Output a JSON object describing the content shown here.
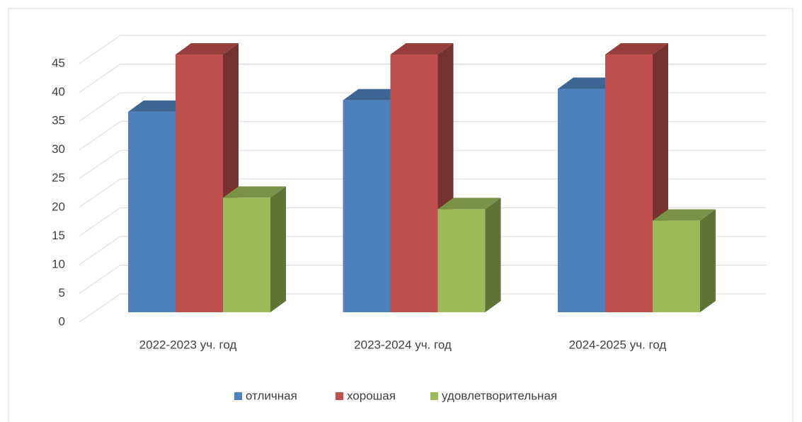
{
  "chart_data": {
    "type": "bar3d",
    "categories": [
      "2022-2023 уч. год",
      "2023-2024 уч. год",
      "2024-2025 уч. год"
    ],
    "series": [
      {
        "name": "отличная",
        "color": "#4f81bd",
        "values": [
          35,
          37,
          39
        ]
      },
      {
        "name": "хорошая",
        "color": "#c0504d",
        "values": [
          45,
          45,
          45
        ]
      },
      {
        "name": "удовлетворительная",
        "color": "#9bbb59",
        "values": [
          20,
          18,
          16
        ]
      }
    ],
    "ylim": [
      0,
      45
    ],
    "yticks": [
      0,
      5,
      10,
      15,
      20,
      25,
      30,
      35,
      40,
      45
    ],
    "grid": true,
    "legend": "bottom"
  }
}
